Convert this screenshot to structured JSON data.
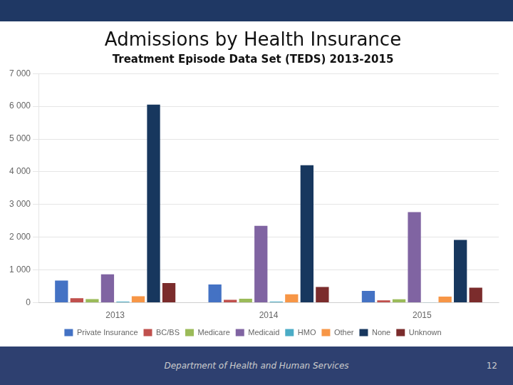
{
  "chart_data": {
    "type": "bar",
    "title": "Admissions by Health Insurance",
    "subtitle": "Treatment Episode Data Set (TEDS) 2013-2015",
    "categories": [
      "2013",
      "2014",
      "2015"
    ],
    "series": [
      {
        "name": "Private Insurance",
        "color": "#4472C4",
        "values": [
          680,
          560,
          360
        ]
      },
      {
        "name": "BC/BS",
        "color": "#C0504D",
        "values": [
          140,
          90,
          75
        ]
      },
      {
        "name": "Medicare",
        "color": "#9BBB59",
        "values": [
          110,
          120,
          105
        ]
      },
      {
        "name": "Medicaid",
        "color": "#8064A2",
        "values": [
          870,
          2350,
          2770
        ]
      },
      {
        "name": "HMO",
        "color": "#4BACC6",
        "values": [
          35,
          35,
          10
        ]
      },
      {
        "name": "Other",
        "color": "#F79646",
        "values": [
          200,
          260,
          185
        ]
      },
      {
        "name": "None",
        "color": "#17375E",
        "values": [
          6050,
          4200,
          1920
        ]
      },
      {
        "name": "Unknown",
        "color": "#7B2C2C",
        "values": [
          600,
          480,
          460
        ]
      }
    ],
    "ylim": [
      0,
      7000
    ],
    "yticks": [
      0,
      {
        "value": 1000,
        "label": "1 000"
      },
      {
        "value": 2000,
        "label": "2 000"
      },
      {
        "value": 3000,
        "label": "3 000"
      },
      {
        "value": 4000,
        "label": "4 000"
      },
      {
        "value": 5000,
        "label": "5 000"
      },
      {
        "value": 6000,
        "label": "6 000"
      },
      {
        "value": 7000,
        "label": "7 000"
      }
    ],
    "grid": true,
    "legend": "bottom",
    "annotations": [
      "Department of Health and Human Services",
      "12"
    ]
  }
}
